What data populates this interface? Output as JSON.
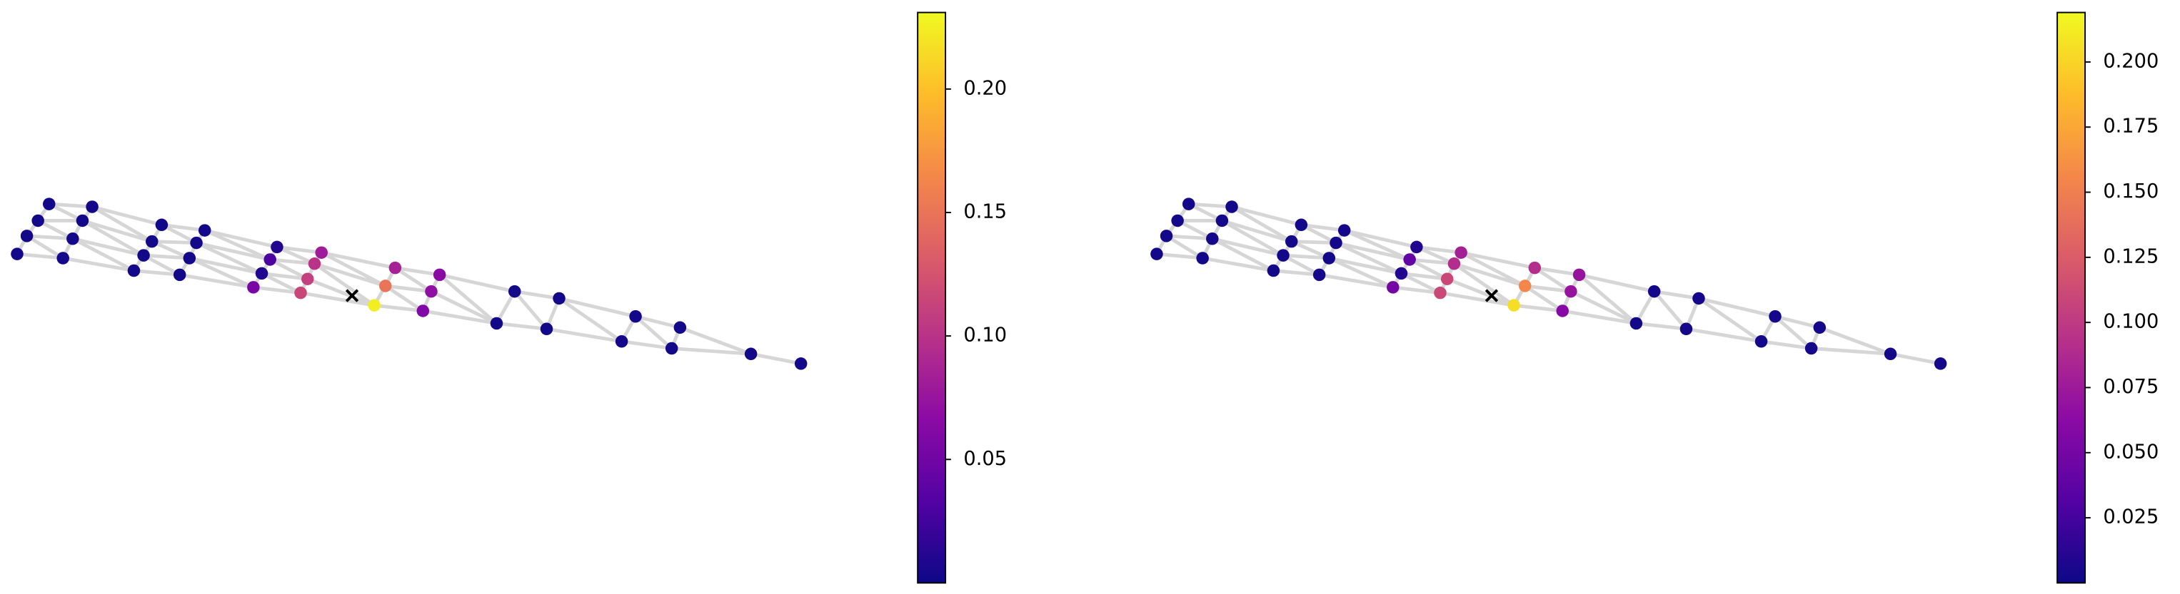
{
  "chart_data": [
    {
      "type": "network",
      "colormap": [
        "#0d0887",
        "#5302a3",
        "#8b0aa5",
        "#b83289",
        "#db5c68",
        "#f48849",
        "#febc2a",
        "#f0f921"
      ],
      "values": [
        0.003,
        0.003,
        0.003,
        0.003,
        0.003,
        0.003,
        0.003,
        0.003,
        0.003,
        0.003,
        0.003,
        0.003,
        0.003,
        0.003,
        0.003,
        0.003,
        0.01,
        0.08,
        0.03,
        0.1,
        0.01,
        0.11,
        0.055,
        0.115,
        0.085,
        0.065,
        0.15,
        0.07,
        0.225,
        0.06,
        0.003,
        0.003,
        0.003,
        0.003,
        0.003,
        0.003,
        0.003,
        0.003,
        0.003,
        0.003
      ],
      "clim": [
        0.0,
        0.231
      ],
      "cticks": [
        0.05,
        {
          "value": 0.1,
          "label": "0.10"
        },
        0.15,
        {
          "value": 0.2,
          "label": "0.20"
        }
      ]
    },
    {
      "type": "network",
      "colormap": [
        "#0d0887",
        "#5302a3",
        "#8b0aa5",
        "#b83289",
        "#db5c68",
        "#f48849",
        "#febc2a",
        "#f0f921"
      ],
      "values": [
        0.003,
        0.003,
        0.003,
        0.003,
        0.003,
        0.003,
        0.003,
        0.003,
        0.003,
        0.003,
        0.003,
        0.003,
        0.003,
        0.003,
        0.003,
        0.003,
        0.01,
        0.08,
        0.04,
        0.09,
        0.01,
        0.11,
        0.05,
        0.11,
        0.09,
        0.07,
        0.155,
        0.07,
        0.205,
        0.06,
        0.003,
        0.003,
        0.003,
        0.003,
        0.003,
        0.003,
        0.003,
        0.003,
        0.003,
        0.003
      ],
      "clim": [
        0.0,
        0.219
      ],
      "cticks": [
        0.025,
        {
          "value": 0.05,
          "label": "0.050"
        },
        0.075,
        {
          "value": 0.1,
          "label": "0.100"
        },
        0.125,
        {
          "value": 0.15,
          "label": "0.150"
        },
        0.175,
        {
          "value": 0.2,
          "label": "0.200"
        }
      ]
    }
  ]
}
